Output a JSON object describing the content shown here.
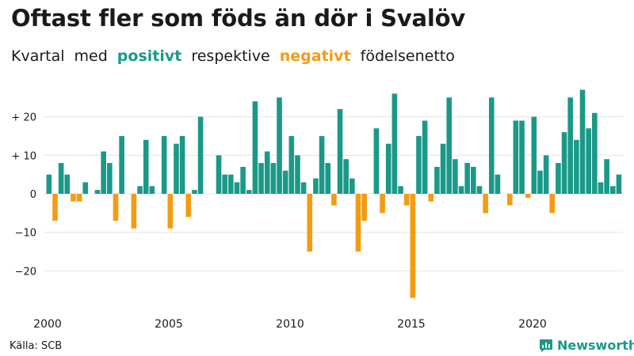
{
  "title": "Oftast fler som föds än dör i Svalöv",
  "subtitle": {
    "w1": "Kvartal",
    "w2": "med",
    "positive": "positivt",
    "w3": "respektive",
    "negative": "negativt",
    "w4": "födelsenetto"
  },
  "source": "Källa: SCB",
  "brand": "Newsworthy",
  "colors": {
    "positive": "#1a9988",
    "negative": "#f39c12",
    "grid": "#e4e4e4",
    "text": "#1a1a1a"
  },
  "chart_data": {
    "type": "bar",
    "title": "Oftast fler som föds än dör i Svalöv",
    "xlabel": "",
    "ylabel": "",
    "ylim": [
      -29,
      29
    ],
    "x_range": [
      2000,
      2024
    ],
    "yticks": [
      {
        "value": 20,
        "label": "+ 20"
      },
      {
        "value": 10,
        "label": "+ 10"
      },
      {
        "value": 0,
        "label": "0"
      },
      {
        "value": -10,
        "label": "−10"
      },
      {
        "value": -20,
        "label": "−20"
      }
    ],
    "xticks": [
      {
        "value": 2000,
        "label": "2000"
      },
      {
        "value": 2005,
        "label": "2005"
      },
      {
        "value": 2010,
        "label": "2010"
      },
      {
        "value": 2015,
        "label": "2015"
      },
      {
        "value": 2020,
        "label": "2020"
      }
    ],
    "start_year": 2000,
    "values": [
      5,
      -7,
      8,
      5,
      -2,
      -2,
      3,
      0,
      1,
      11,
      8,
      -7,
      15,
      0,
      -9,
      2,
      14,
      2,
      0,
      15,
      -9,
      13,
      15,
      -6,
      1,
      20,
      0,
      0,
      10,
      5,
      5,
      3,
      7,
      1,
      24,
      8,
      11,
      8,
      25,
      6,
      15,
      10,
      3,
      -15,
      4,
      15,
      8,
      -3,
      22,
      9,
      4,
      -15,
      -7,
      0,
      17,
      -5,
      13,
      26,
      2,
      -3,
      -27,
      15,
      19,
      -2,
      7,
      13,
      25,
      9,
      2,
      8,
      7,
      2,
      -5,
      25,
      5,
      0,
      -3,
      19,
      19,
      -1,
      20,
      6,
      10,
      -5,
      8,
      16,
      25,
      14,
      27,
      17,
      21,
      3,
      9,
      2,
      5
    ]
  }
}
